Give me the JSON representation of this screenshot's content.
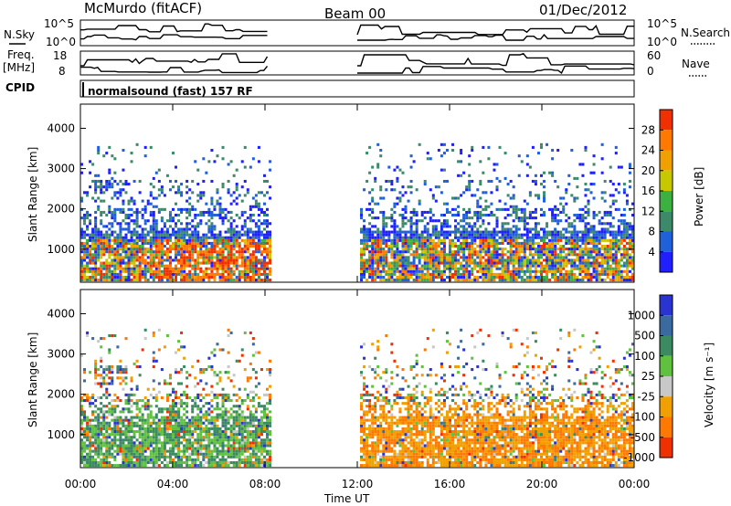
{
  "header": {
    "left_title": "McMurdo (fitACF)",
    "center_title": "Beam 00",
    "right_title": "01/Dec/2012"
  },
  "top_panels": {
    "nsky_label": "N.Sky",
    "freq_label": "Freq.",
    "freq_unit": "[MHz]",
    "cpid_label": "CPID",
    "nsearch_label": "N.Search",
    "nave_label": "Nave",
    "noise_left_ticks": [
      "10^5",
      "10^0"
    ],
    "noise_right_ticks": [
      "10^5",
      "10^0"
    ],
    "freq_ticks": [
      "18",
      "8"
    ],
    "nave_ticks": [
      "60",
      "0"
    ],
    "cpid_text": "normalsound (fast) 157 RF"
  },
  "chart_data": [
    {
      "type": "heatmap",
      "name": "power",
      "ylabel": "Slant Range [km]",
      "xlabel": "",
      "x_ticks": [
        "00:00",
        "04:00",
        "08:00",
        "12:00",
        "16:00",
        "20:00",
        "00:00"
      ],
      "y_ticks": [
        "1000",
        "2000",
        "3000",
        "4000"
      ],
      "ylim": [
        180,
        4600
      ],
      "xlim_hours": [
        0,
        24
      ],
      "data_gap_hours": [
        8.2,
        12.0
      ],
      "colorbar": {
        "label": "Power [dB]",
        "ticks": [
          "4",
          "8",
          "12",
          "16",
          "20",
          "24",
          "28"
        ],
        "colors": [
          "#1f1fff",
          "#2060d8",
          "#3c8a6a",
          "#3cb040",
          "#c8c800",
          "#f0a000",
          "#ff7800",
          "#f03000"
        ]
      }
    },
    {
      "type": "heatmap",
      "name": "velocity",
      "ylabel": "Slant Range [km]",
      "xlabel": "Time UT",
      "x_ticks": [
        "00:00",
        "04:00",
        "08:00",
        "12:00",
        "16:00",
        "20:00",
        "00:00"
      ],
      "y_ticks": [
        "1000",
        "2000",
        "3000",
        "4000"
      ],
      "ylim": [
        180,
        4600
      ],
      "xlim_hours": [
        0,
        24
      ],
      "data_gap_hours": [
        8.2,
        12.0
      ],
      "colorbar": {
        "label": "Velocity [m s⁻¹]",
        "ticks": [
          "1000",
          "500",
          "100",
          "25",
          "-25",
          "-100",
          "-500",
          "-1000"
        ],
        "colors": [
          "#2a34d0",
          "#3a6aa0",
          "#3c8a60",
          "#60c040",
          "#c8c8c8",
          "#f0a000",
          "#ff7800",
          "#f03000"
        ]
      }
    }
  ]
}
